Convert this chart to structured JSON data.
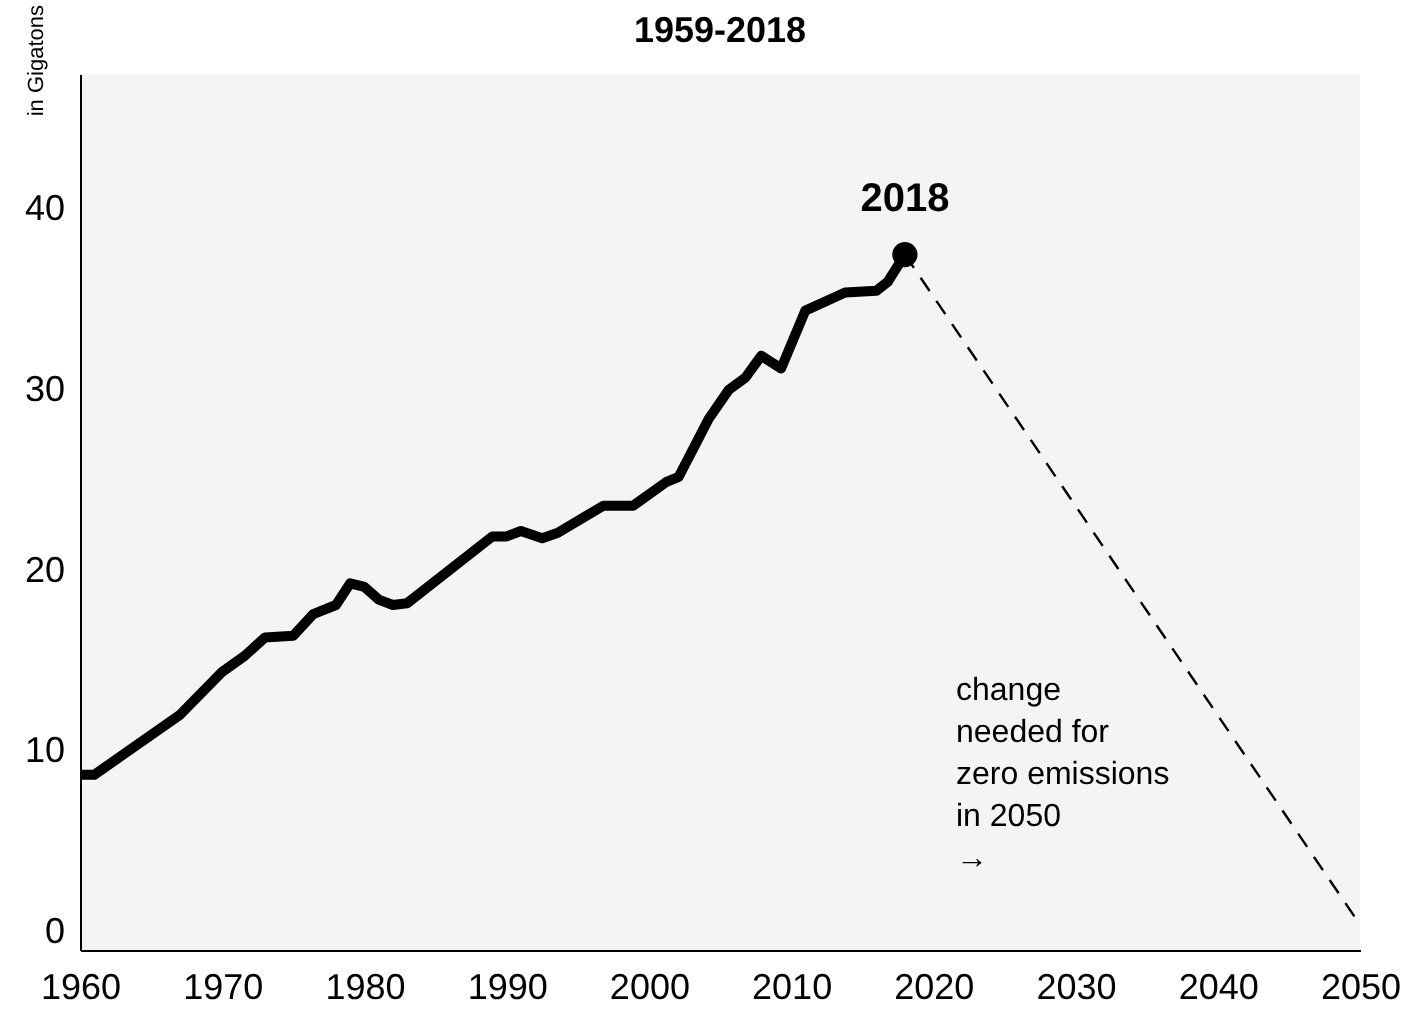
{
  "chart_data": {
    "type": "line",
    "title": "1959-2018",
    "ylabel": "in Gigatons",
    "xlim": [
      1960,
      2050
    ],
    "xticks": [
      1960,
      1970,
      1980,
      1990,
      2000,
      2010,
      2020,
      2030,
      2040,
      2050
    ],
    "ylim": [
      -1,
      47.5
    ],
    "yticks": [
      0,
      10,
      20,
      30,
      40
    ],
    "grid": false,
    "marker": "none",
    "series": [
      {
        "color": "#000000",
        "line_style": "solid",
        "x": [
          1960,
          1961,
          1967,
          1970,
          1971.6,
          1973,
          1975,
          1976.4,
          1978,
          1979,
          1980,
          1981,
          1982,
          1983,
          1989,
          1990,
          1991,
          1992.5,
          1993.6,
          1996.8,
          1998.9,
          2001.2,
          2002.1,
          2004.2,
          2005.6,
          2006.8,
          2007.9,
          2009.3,
          2011,
          2013.8,
          2016,
          2016.8,
          2018
        ],
        "values": [
          8.7,
          8.7,
          12.0,
          14.4,
          15.3,
          16.3,
          16.4,
          17.6,
          18.1,
          19.3,
          19.1,
          18.4,
          18.1,
          18.2,
          21.9,
          21.9,
          22.2,
          21.8,
          22.1,
          23.6,
          23.6,
          24.9,
          25.2,
          28.4,
          30.0,
          30.7,
          31.9,
          31.2,
          34.4,
          35.4,
          35.5,
          36.0,
          37.5
        ]
      },
      {
        "color": "#000000",
        "line_style": "dashed",
        "x": [
          2018,
          2050
        ],
        "values": [
          37.5,
          0.4
        ]
      },
      {
        "type": "scatter",
        "color": "#000000",
        "marker": "circle",
        "x": [
          2018
        ],
        "values": [
          37.5
        ]
      }
    ],
    "annotations": [
      {
        "text": "2018",
        "x": 2018,
        "y": 37.5
      },
      "change\nneeded for\nzero emissions\nin 2050\n→"
    ]
  }
}
